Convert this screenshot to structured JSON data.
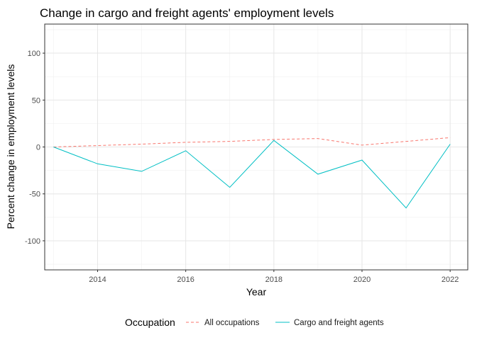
{
  "chart_data": {
    "type": "line",
    "title": "Change in cargo and freight agents' employment levels",
    "xlabel": "Year",
    "ylabel": "Percent change in employment levels",
    "xlim": [
      2012.8,
      2022.4
    ],
    "ylim": [
      -131,
      131
    ],
    "x_ticks": [
      2014,
      2016,
      2018,
      2020,
      2022
    ],
    "y_ticks": [
      -100,
      -50,
      0,
      50,
      100
    ],
    "grid": true,
    "legend": {
      "title": "Occupation",
      "position": "bottom"
    },
    "x": [
      2013,
      2014,
      2015,
      2016,
      2017,
      2018,
      2019,
      2020,
      2021,
      2022
    ],
    "series": [
      {
        "name": "All occupations",
        "color": "#F8766D",
        "dash": "dashed",
        "values": [
          0,
          1.5,
          3,
          5,
          6,
          8,
          9,
          2,
          6,
          10
        ]
      },
      {
        "name": "Cargo and freight agents",
        "color": "#00BFC4",
        "dash": "solid",
        "values": [
          0,
          -18,
          -26,
          -4,
          -43,
          7,
          -29,
          -14,
          -65,
          3
        ]
      }
    ]
  }
}
